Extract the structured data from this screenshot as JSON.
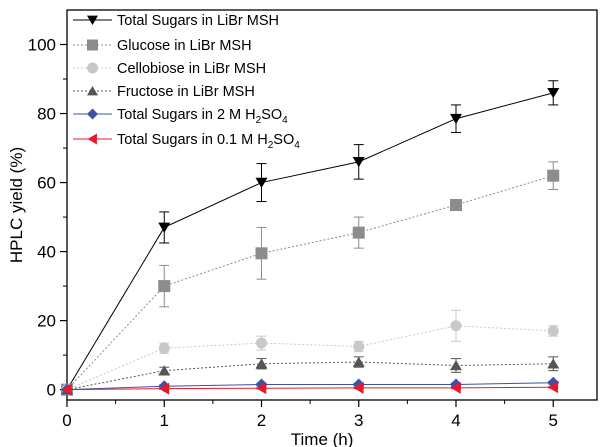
{
  "chart_data": {
    "type": "line",
    "xlabel": "Time (h)",
    "ylabel": "HPLC yield (%)",
    "xlim": [
      0,
      5.45
    ],
    "ylim": [
      -3,
      110
    ],
    "xticks": [
      0,
      1,
      2,
      3,
      4,
      5
    ],
    "yticks": [
      0,
      20,
      40,
      60,
      80,
      100
    ],
    "x_tick_labels": [
      "0",
      "1",
      "2",
      "3",
      "4",
      "5"
    ],
    "y_tick_labels": [
      "0",
      "20",
      "40",
      "60",
      "80",
      "100"
    ],
    "grid": false,
    "legend_position": "top-left",
    "series": [
      {
        "name": "Total Sugars in LiBr MSH",
        "legend_text": "Total Sugars in LiBr MSH",
        "color": "#000000",
        "marker": "triangle-down",
        "line_style": "solid",
        "x": [
          0,
          1,
          2,
          3,
          4,
          5
        ],
        "y": [
          0,
          47,
          60,
          66,
          78.5,
          86
        ],
        "err": [
          0,
          4.5,
          5.5,
          5,
          4,
          3.5
        ]
      },
      {
        "name": "Glucose in LiBr MSH",
        "legend_text": "Glucose in LiBr MSH",
        "color": "#8c8c8c",
        "marker": "square",
        "line_style": "dotted",
        "x": [
          0,
          1,
          2,
          3,
          4,
          5
        ],
        "y": [
          0,
          30,
          39.5,
          45.5,
          53.5,
          62
        ],
        "err": [
          0,
          6,
          7.5,
          4.5,
          1.5,
          4
        ]
      },
      {
        "name": "Cellobiose in LiBr MSH",
        "legend_text": "Cellobiose in LiBr MSH",
        "color": "#c8c8c8",
        "marker": "circle",
        "line_style": "dotted",
        "x": [
          0,
          1,
          2,
          3,
          4,
          5
        ],
        "y": [
          0,
          12,
          13.5,
          12.5,
          18.5,
          17
        ],
        "err": [
          0,
          1.5,
          2,
          1.5,
          4.5,
          1.5
        ]
      },
      {
        "name": "Fructose in LiBr MSH",
        "legend_text": "Fructose in LiBr MSH",
        "color": "#555555",
        "marker": "triangle-up",
        "line_style": "dotted",
        "x": [
          0,
          1,
          2,
          3,
          4,
          5
        ],
        "y": [
          0,
          5.5,
          7.5,
          8,
          7,
          7.5
        ],
        "err": [
          0,
          1,
          1.5,
          1.5,
          2,
          2
        ]
      },
      {
        "name": "Total Sugars in 2 M H2SO4",
        "legend_text": "Total Sugars in 2 M H",
        "legend_sub": "2",
        "legend_tail": "SO",
        "legend_sub2": "4",
        "color": "#3a53a4",
        "marker": "diamond",
        "line_style": "solid",
        "x": [
          0,
          1,
          2,
          3,
          4,
          5
        ],
        "y": [
          0,
          1,
          1.5,
          1.5,
          1.5,
          2
        ],
        "err": [
          0,
          0.4,
          0.4,
          0.4,
          0.4,
          0.4
        ]
      },
      {
        "name": "Total Sugars in 0.1 M H2SO4",
        "legend_text": "Total Sugars in 0.1 M H",
        "legend_sub": "2",
        "legend_tail": "SO",
        "legend_sub2": "4",
        "color": "#e8192c",
        "marker": "triangle-left",
        "line_style": "solid",
        "x": [
          0,
          1,
          2,
          3,
          4,
          5
        ],
        "y": [
          0,
          0.3,
          0.4,
          0.5,
          0.5,
          0.7
        ],
        "err": [
          0,
          0.2,
          0.2,
          0.2,
          0.2,
          0.2
        ]
      }
    ]
  }
}
